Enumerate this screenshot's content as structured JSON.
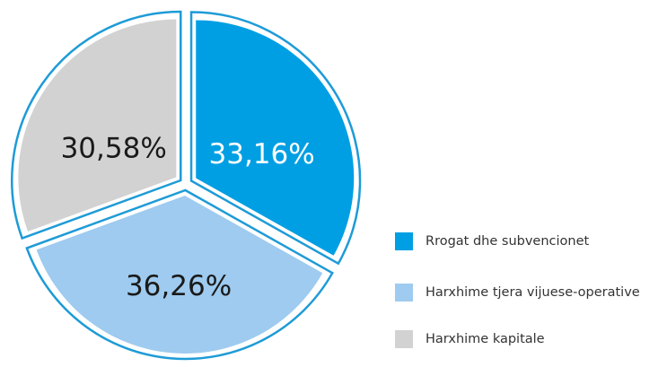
{
  "chart_data": {
    "type": "pie",
    "categories": [
      "Rrogat dhe subvencionet",
      "Harxhime tjera vijuese-operative",
      "Harxhime kapitale"
    ],
    "values": [
      33.16,
      36.26,
      30.58
    ],
    "value_labels": [
      "33,16%",
      "36,26%",
      "30,58%"
    ],
    "colors": [
      "#009fe3",
      "#9ecbef",
      "#d2d2d2"
    ],
    "label_colors": [
      "#ffffff",
      "#1a1a1a",
      "#1a1a1a"
    ],
    "outline_color": "#1e9bd7",
    "legend": "right"
  }
}
